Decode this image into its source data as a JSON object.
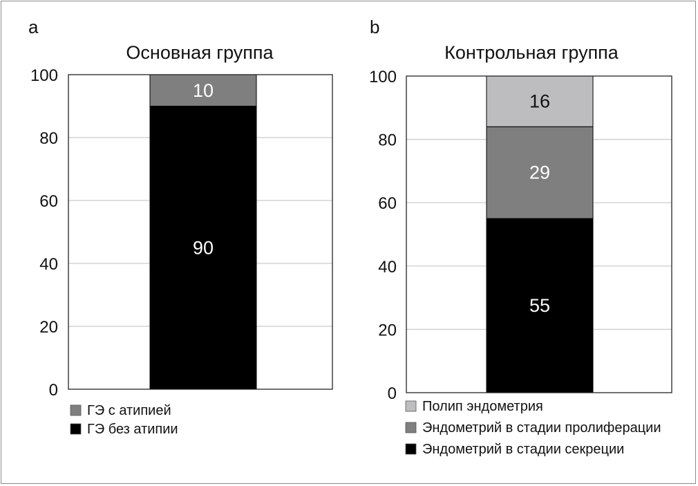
{
  "chart_data": [
    {
      "type": "bar",
      "stacked": true,
      "panel": "a",
      "title": "Основная группа",
      "xlabel": "",
      "ylabel": "",
      "ylim": [
        0,
        100
      ],
      "yticks": [
        0,
        20,
        40,
        60,
        80,
        100
      ],
      "grid": true,
      "legend_position": "bottom-left",
      "series": [
        {
          "name": "ГЭ без атипии",
          "value": 90,
          "label": "90",
          "color": "#000000",
          "label_color": "#ffffff"
        },
        {
          "name": "ГЭ с атипией",
          "value": 10,
          "label": "10",
          "color": "#7f7f7f",
          "label_color": "#ffffff"
        }
      ],
      "legend": [
        {
          "name": "ГЭ с атипией",
          "color": "#7f7f7f"
        },
        {
          "name": "ГЭ без атипии",
          "color": "#000000"
        }
      ]
    },
    {
      "type": "bar",
      "stacked": true,
      "panel": "b",
      "title": "Контрольная группа",
      "xlabel": "",
      "ylabel": "",
      "ylim": [
        0,
        100
      ],
      "yticks": [
        0,
        20,
        40,
        60,
        80,
        100
      ],
      "grid": true,
      "legend_position": "bottom-left",
      "series": [
        {
          "name": "Эндометрий в стадии секреции",
          "value": 55,
          "label": "55",
          "color": "#000000",
          "label_color": "#ffffff"
        },
        {
          "name": "Эндометрий в стадии пролиферации",
          "value": 29,
          "label": "29",
          "color": "#7f7f7f",
          "label_color": "#ffffff"
        },
        {
          "name": "Полип эндометрия",
          "value": 16,
          "label": "16",
          "color": "#bdbdbf",
          "label_color": "#111111"
        }
      ],
      "legend": [
        {
          "name": "Полип эндометрия",
          "color": "#bdbdbf"
        },
        {
          "name": "Эндометрий в стадии пролиферации",
          "color": "#7f7f7f"
        },
        {
          "name": "Эндометрий в стадии секреции",
          "color": "#000000"
        }
      ]
    }
  ]
}
